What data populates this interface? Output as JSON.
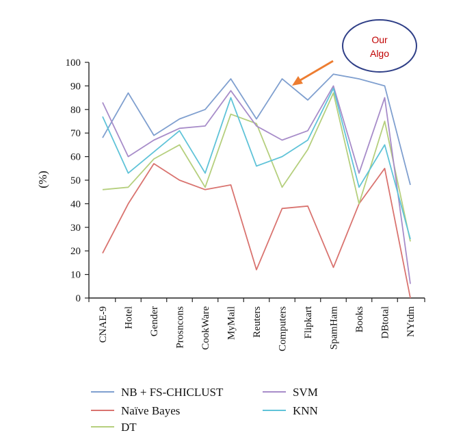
{
  "chart_data": {
    "type": "line",
    "title": "",
    "xlabel": "",
    "ylabel": "(%)",
    "ylim": [
      0,
      100
    ],
    "yticks": [
      0,
      10,
      20,
      30,
      40,
      50,
      60,
      70,
      80,
      90,
      100
    ],
    "categories": [
      "CNAE-9",
      "Hotel",
      "Gender",
      "Prosncons",
      "CookWare",
      "MyMail",
      "Reuters",
      "Computers",
      "Flipkart",
      "SpamHam",
      "Books",
      "DBtotal",
      "NYtdm"
    ],
    "grid": false,
    "legend_position": "bottom",
    "series": [
      {
        "name": "NB + FS-CHICLUST",
        "color": "#7f9fcf",
        "values": [
          68,
          87,
          69,
          76,
          80,
          93,
          76,
          93,
          84,
          95,
          93,
          90,
          48
        ]
      },
      {
        "name": "Naïve Bayes",
        "color": "#d9736f",
        "values": [
          19,
          40,
          57,
          50,
          46,
          48,
          12,
          38,
          39,
          13,
          40,
          55,
          0
        ]
      },
      {
        "name": "DT",
        "color": "#b5cf7d",
        "values": [
          46,
          47,
          59,
          65,
          47,
          78,
          74,
          47,
          63,
          87,
          40,
          75,
          24
        ]
      },
      {
        "name": "SVM",
        "color": "#a78cc9",
        "values": [
          83,
          60,
          67,
          72,
          73,
          88,
          73,
          67,
          71,
          90,
          53,
          85,
          6
        ]
      },
      {
        "name": "KNN",
        "color": "#5fc3d8",
        "values": [
          77,
          53,
          62,
          71,
          53,
          85,
          56,
          60,
          67,
          89,
          47,
          65,
          25
        ]
      }
    ],
    "annotation": {
      "line1": "Our",
      "line2": "Algo",
      "text_color": "#c00000",
      "bubble_color": "#2f3f87",
      "arrow_color": "#ed7d31",
      "points_to_category": "Computers",
      "points_to_series": "NB + FS-CHICLUST"
    }
  }
}
